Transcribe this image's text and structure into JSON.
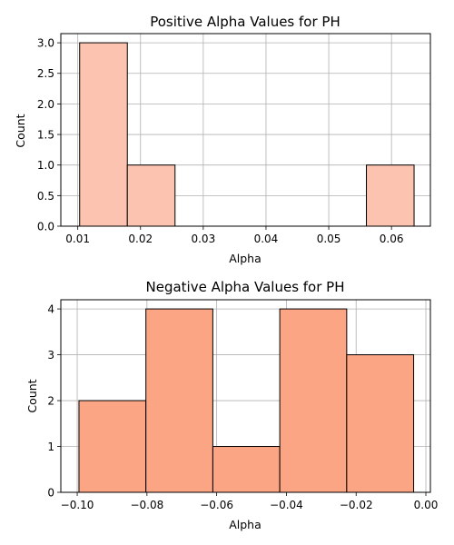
{
  "chart_data": [
    {
      "type": "bar",
      "title": "Positive Alpha Values for PH",
      "xlabel": "Alpha",
      "ylabel": "Count",
      "grid": true,
      "bar_color": "#fcc4b0",
      "edge_color": "#000000",
      "xlim": [
        0.0073,
        0.0662
      ],
      "ylim": [
        0,
        3.15
      ],
      "x_ticks": [
        0.01,
        0.02,
        0.03,
        0.04,
        0.05,
        0.06
      ],
      "x_tick_labels": [
        "0.01",
        "0.02",
        "0.03",
        "0.04",
        "0.05",
        "0.06"
      ],
      "y_ticks": [
        0,
        0.5,
        1,
        1.5,
        2,
        2.5,
        3
      ],
      "y_tick_labels": [
        "0.0",
        "0.5",
        "1.0",
        "1.5",
        "2.0",
        "2.5",
        "3.0"
      ],
      "bins": [
        {
          "x0": 0.0103,
          "x1": 0.0179,
          "count": 3
        },
        {
          "x0": 0.0179,
          "x1": 0.0255,
          "count": 1
        },
        {
          "x0": 0.0255,
          "x1": 0.0331,
          "count": 0
        },
        {
          "x0": 0.0331,
          "x1": 0.0407,
          "count": 0
        },
        {
          "x0": 0.0407,
          "x1": 0.0484,
          "count": 0
        },
        {
          "x0": 0.0484,
          "x1": 0.056,
          "count": 0
        },
        {
          "x0": 0.056,
          "x1": 0.0636,
          "count": 1
        }
      ]
    },
    {
      "type": "bar",
      "title": "Negative Alpha Values for PH",
      "xlabel": "Alpha",
      "ylabel": "Count",
      "grid": true,
      "bar_color": "#fca584",
      "edge_color": "#000000",
      "xlim": [
        -0.1047,
        0.0013
      ],
      "ylim": [
        0,
        4.2
      ],
      "x_ticks": [
        -0.1,
        -0.08,
        -0.06,
        -0.04,
        -0.02,
        0
      ],
      "x_tick_labels": [
        "−0.10",
        "−0.08",
        "−0.06",
        "−0.04",
        "−0.02",
        "0.00"
      ],
      "y_ticks": [
        0,
        1,
        2,
        3,
        4
      ],
      "y_tick_labels": [
        "0",
        "1",
        "2",
        "3",
        "4"
      ],
      "bins": [
        {
          "x0": -0.0995,
          "x1": -0.0803,
          "count": 2
        },
        {
          "x0": -0.0803,
          "x1": -0.0611,
          "count": 4
        },
        {
          "x0": -0.0611,
          "x1": -0.0419,
          "count": 1
        },
        {
          "x0": -0.0419,
          "x1": -0.0227,
          "count": 4
        },
        {
          "x0": -0.0227,
          "x1": -0.0035,
          "count": 3
        }
      ]
    }
  ]
}
